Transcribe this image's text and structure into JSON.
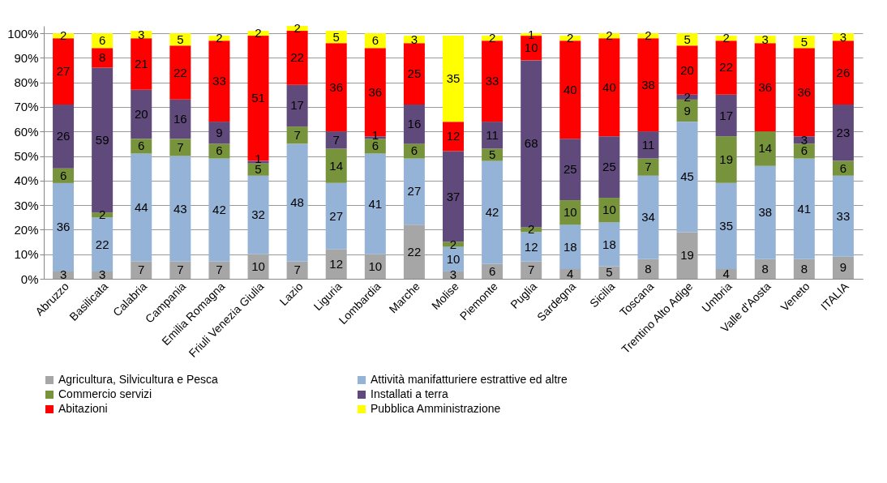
{
  "chart_data": {
    "type": "bar",
    "stacked": true,
    "categories": [
      "Abruzzo",
      "Basilicata",
      "Calabria",
      "Campania",
      "Emilia Romagna",
      "Friuli Venezia Giulia",
      "Lazio",
      "Liguria",
      "Lombardia",
      "Marche",
      "Molise",
      "Piemonte",
      "Puglia",
      "Sardegna",
      "Sicilia",
      "Toscana",
      "Trentino Alto Adige",
      "Umbria",
      "Valle d'Aosta",
      "Veneto",
      "ITALIA"
    ],
    "series": [
      {
        "name": "Agricultura, Silvicultura e Pesca",
        "color": "#a6a6a6",
        "values": [
          3,
          3,
          7,
          7,
          7,
          10,
          7,
          12,
          10,
          22,
          3,
          6,
          7,
          4,
          5,
          8,
          19,
          4,
          8,
          8,
          9
        ],
        "value_labels": [
          "3",
          "3",
          "7",
          "7",
          "7",
          "10",
          "7",
          "12",
          "10",
          "22",
          "3",
          "6",
          "7",
          "4",
          "5",
          "8",
          "19",
          "4",
          "8",
          "8",
          "9"
        ]
      },
      {
        "name": "Attività  manifatturiere estrattive ed altre",
        "color": "#95b3d7",
        "values": [
          36,
          22,
          44,
          43,
          42,
          32,
          48,
          27,
          41,
          27,
          10,
          42,
          12,
          18,
          18,
          34,
          45,
          35,
          38,
          41,
          33
        ],
        "value_labels": [
          "36",
          "22",
          "44",
          "43",
          "42",
          "32",
          "48",
          "27",
          "41",
          "27",
          "10",
          "42",
          "12",
          "18",
          "18",
          "34",
          "45",
          "35",
          "38",
          "41",
          "33"
        ]
      },
      {
        "name": "Commercio servizi",
        "color": "#77933c",
        "values": [
          6,
          2,
          6,
          7,
          6,
          5,
          7,
          14,
          6,
          6,
          2,
          5,
          2,
          10,
          10,
          7,
          9,
          19,
          14,
          6,
          6
        ],
        "value_labels": [
          "6",
          "2",
          "6",
          "7",
          "6",
          "5",
          "7",
          "14",
          "6",
          "6",
          "2",
          "5",
          "2",
          "10",
          "10",
          "7",
          "9",
          "19",
          "14",
          "6",
          "6"
        ]
      },
      {
        "name": "Installati a terra",
        "color": "#604a7b",
        "values": [
          26,
          59,
          20,
          16,
          9,
          1,
          17,
          7,
          1,
          16,
          37,
          11,
          68,
          25,
          25,
          11,
          2,
          17,
          0,
          3,
          23
        ],
        "value_labels": [
          "26",
          "59",
          "20",
          "16",
          "9",
          "1",
          "17",
          "7",
          "1",
          "16",
          "37",
          "11",
          "68",
          "25",
          "25",
          "11",
          "2",
          "17",
          null,
          "3",
          "23"
        ]
      },
      {
        "name": "Abitazioni",
        "color": "#ff0000",
        "values": [
          27,
          8,
          21,
          22,
          33,
          51,
          22,
          36,
          36,
          25,
          12,
          33,
          10,
          40,
          40,
          38,
          20,
          22,
          36,
          36,
          26
        ],
        "value_labels": [
          "27",
          "8",
          "21",
          "22",
          "33",
          "51",
          "22",
          "36",
          "36",
          "25",
          "12",
          "33",
          "10",
          "40",
          "40",
          "38",
          "20",
          "22",
          "36",
          "36",
          "26"
        ]
      },
      {
        "name": "Pubblica Amministrazione",
        "color": "#ffff00",
        "values": [
          2,
          6,
          3,
          5,
          2,
          2,
          2,
          5,
          6,
          3,
          35,
          2,
          1,
          2,
          2,
          2,
          5,
          2,
          3,
          5,
          3
        ],
        "value_labels": [
          "2",
          "6",
          "3",
          "5",
          "2",
          "2",
          "2",
          "5",
          "6",
          "3",
          "35",
          "2",
          "1",
          "2",
          "2",
          "2",
          "5",
          "2",
          "3",
          "5",
          "3"
        ]
      }
    ],
    "ylim": [
      0,
      103
    ],
    "yticks": [
      {
        "value": 0,
        "label": "0%"
      },
      {
        "value": 10,
        "label": "10%"
      },
      {
        "value": 20,
        "label": "20%"
      },
      {
        "value": 30,
        "label": "30%"
      },
      {
        "value": 40,
        "label": "40%"
      },
      {
        "value": 50,
        "label": "50%"
      },
      {
        "value": 60,
        "label": "60%"
      },
      {
        "value": 70,
        "label": "70%"
      },
      {
        "value": 80,
        "label": "80%"
      },
      {
        "value": 90,
        "label": "90%"
      },
      {
        "value": 100,
        "label": "100%"
      }
    ],
    "grid": "y",
    "legend": "bottom"
  }
}
